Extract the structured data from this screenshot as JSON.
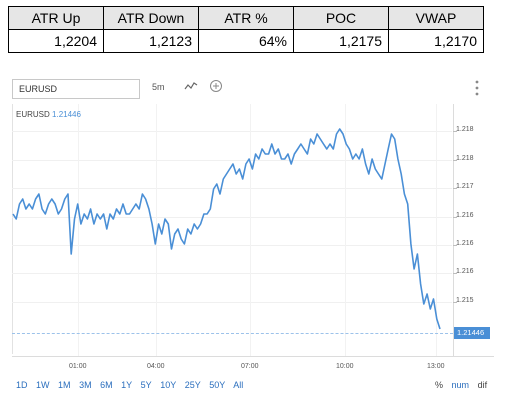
{
  "stats_table": {
    "headers": [
      "ATR Up",
      "ATR Down",
      "ATR %",
      "POC",
      "VWAP"
    ],
    "values": [
      "1,2204",
      "1,2123",
      "64%",
      "1,2175",
      "1,2170"
    ]
  },
  "toolbar": {
    "symbol": "EURUSD",
    "interval": "5m",
    "line_icon": "line-chart-icon",
    "add_icon": "plus-circle-icon",
    "menu_icon": "vertical-dots-icon"
  },
  "legend": {
    "symbol": "EURUSD",
    "price": "1.21446"
  },
  "chart_data": {
    "type": "line",
    "title": "",
    "series": [
      {
        "color": "#4a8fd6",
        "values": [
          1.2166,
          1.2165,
          1.2168,
          1.2169,
          1.2167,
          1.2168,
          1.2167,
          1.2169,
          1.217,
          1.2167,
          1.2166,
          1.2168,
          1.2169,
          1.2168,
          1.2166,
          1.2167,
          1.2169,
          1.217,
          1.2158,
          1.2165,
          1.2168,
          1.2164,
          1.2166,
          1.2165,
          1.2167,
          1.2164,
          1.2166,
          1.2165,
          1.2166,
          1.2163,
          1.2166,
          1.2165,
          1.2167,
          1.2166,
          1.2168,
          1.2166,
          1.2166,
          1.2167,
          1.2168,
          1.2167,
          1.217,
          1.2169,
          1.2167,
          1.2164,
          1.216,
          1.2164,
          1.2162,
          1.2165,
          1.2164,
          1.2159,
          1.2162,
          1.2163,
          1.2161,
          1.216,
          1.2163,
          1.2162,
          1.2164,
          1.2163,
          1.2164,
          1.2166,
          1.2166,
          1.2167,
          1.2171,
          1.2172,
          1.217,
          1.2173,
          1.2174,
          1.2175,
          1.2176,
          1.2174,
          1.2175,
          1.2173,
          1.2176,
          1.2177,
          1.2175,
          1.2178,
          1.2177,
          1.2179,
          1.2178,
          1.2178,
          1.218,
          1.2178,
          1.2179,
          1.2177,
          1.2177,
          1.2178,
          1.2176,
          1.2178,
          1.2179,
          1.218,
          1.2179,
          1.2178,
          1.2181,
          1.218,
          1.2182,
          1.2181,
          1.218,
          1.2179,
          1.218,
          1.2179,
          1.2182,
          1.2183,
          1.2182,
          1.218,
          1.2179,
          1.2177,
          1.2178,
          1.2177,
          1.2179,
          1.2176,
          1.2174,
          1.2177,
          1.2175,
          1.2174,
          1.2173,
          1.2176,
          1.2179,
          1.2182,
          1.2181,
          1.2177,
          1.2174,
          1.217,
          1.2168,
          1.216,
          1.2155,
          1.2158,
          1.2152,
          1.2148,
          1.215,
          1.2147,
          1.2149,
          1.2145,
          1.2143
        ]
      }
    ],
    "x_ticks": [
      "01:00",
      "04:00",
      "07:00",
      "10:00",
      "13:00"
    ],
    "y_ticks": [
      "1.218",
      "1.218",
      "1.217",
      "1.216",
      "1.216",
      "1.216",
      "1.215"
    ],
    "last_price": "1.21446",
    "ylim": [
      1.214,
      1.2186
    ],
    "grid": true
  },
  "ranges": [
    "1D",
    "1W",
    "1M",
    "3M",
    "6M",
    "1Y",
    "5Y",
    "10Y",
    "25Y",
    "50Y",
    "All"
  ],
  "scales": [
    "%",
    "num",
    "dif"
  ]
}
